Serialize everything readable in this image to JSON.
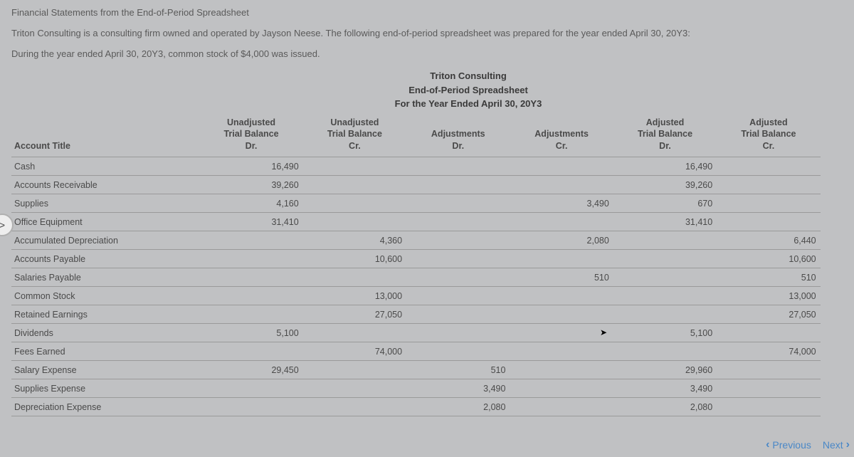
{
  "intro": {
    "line1": "Financial Statements from the End-of-Period Spreadsheet",
    "line2": "Triton Consulting is a consulting firm owned and operated by Jayson Neese. The following end-of-period spreadsheet was prepared for the year ended April 30, 20Y3:",
    "line3": "During the year ended April 30, 20Y3, common stock of $4,000 was issued."
  },
  "header": {
    "company": "Triton Consulting",
    "title": "End-of-Period Spreadsheet",
    "period": "For the Year Ended April 30, 20Y3"
  },
  "columns": {
    "acct": "Account Title",
    "c1_top": "Unadjusted",
    "c1_mid": "Trial Balance",
    "c1_bot": "Dr.",
    "c2_top": "Unadjusted",
    "c2_mid": "Trial Balance",
    "c2_bot": "Cr.",
    "c3_top": "Adjustments",
    "c3_bot": "Dr.",
    "c4_top": "Adjustments",
    "c4_bot": "Cr.",
    "c5_top": "Adjusted",
    "c5_mid": "Trial Balance",
    "c5_bot": "Dr.",
    "c6_top": "Adjusted",
    "c6_mid": "Trial Balance",
    "c6_bot": "Cr."
  },
  "rows": [
    {
      "acct": "Cash",
      "c1": "16,490",
      "c2": "",
      "c3": "",
      "c4": "",
      "c5": "16,490",
      "c6": ""
    },
    {
      "acct": "Accounts Receivable",
      "c1": "39,260",
      "c2": "",
      "c3": "",
      "c4": "",
      "c5": "39,260",
      "c6": ""
    },
    {
      "acct": "Supplies",
      "c1": "4,160",
      "c2": "",
      "c3": "",
      "c4": "3,490",
      "c5": "670",
      "c6": ""
    },
    {
      "acct": "Office Equipment",
      "c1": "31,410",
      "c2": "",
      "c3": "",
      "c4": "",
      "c5": "31,410",
      "c6": ""
    },
    {
      "acct": "Accumulated Depreciation",
      "c1": "",
      "c2": "4,360",
      "c3": "",
      "c4": "2,080",
      "c5": "",
      "c6": "6,440"
    },
    {
      "acct": "Accounts Payable",
      "c1": "",
      "c2": "10,600",
      "c3": "",
      "c4": "",
      "c5": "",
      "c6": "10,600"
    },
    {
      "acct": "Salaries Payable",
      "c1": "",
      "c2": "",
      "c3": "",
      "c4": "510",
      "c5": "",
      "c6": "510"
    },
    {
      "acct": "Common Stock",
      "c1": "",
      "c2": "13,000",
      "c3": "",
      "c4": "",
      "c5": "",
      "c6": "13,000"
    },
    {
      "acct": "Retained Earnings",
      "c1": "",
      "c2": "27,050",
      "c3": "",
      "c4": "",
      "c5": "",
      "c6": "27,050"
    },
    {
      "acct": "Dividends",
      "c1": "5,100",
      "c2": "",
      "c3": "",
      "c4": "",
      "c5": "5,100",
      "c6": ""
    },
    {
      "acct": "Fees Earned",
      "c1": "",
      "c2": "74,000",
      "c3": "",
      "c4": "",
      "c5": "",
      "c6": "74,000"
    },
    {
      "acct": "Salary Expense",
      "c1": "29,450",
      "c2": "",
      "c3": "510",
      "c4": "",
      "c5": "29,960",
      "c6": ""
    },
    {
      "acct": "Supplies Expense",
      "c1": "",
      "c2": "",
      "c3": "3,490",
      "c4": "",
      "c5": "3,490",
      "c6": ""
    },
    {
      "acct": "Depreciation Expense",
      "c1": "",
      "c2": "",
      "c3": "2,080",
      "c4": "",
      "c5": "2,080",
      "c6": ""
    }
  ],
  "nav": {
    "previous": "Previous",
    "next": "Next"
  }
}
